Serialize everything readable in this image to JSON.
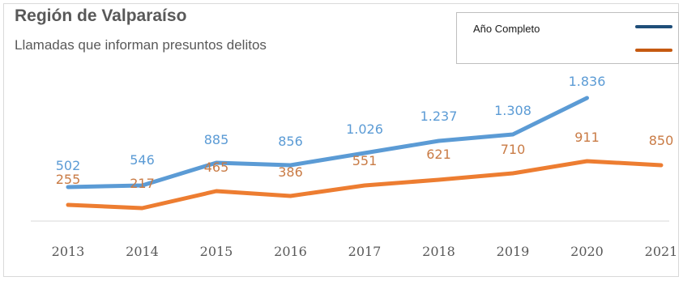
{
  "chart_data": {
    "type": "line",
    "title": "Región de Valparaíso",
    "subtitle": "Llamadas que informan presuntos delitos",
    "categories": [
      "2013",
      "2014",
      "2015",
      "2016",
      "2017",
      "2018",
      "2019",
      "2020",
      "2021"
    ],
    "series": [
      {
        "name": "Año Completo",
        "color": "#5b9bd5",
        "values": [
          502,
          546,
          885,
          856,
          1026,
          1237,
          1308,
          1836,
          null
        ],
        "labels": [
          "502",
          "546",
          "885",
          "856",
          "1.026",
          "1.237",
          "1.308",
          "1.836",
          ""
        ]
      },
      {
        "name": "",
        "color": "#ed7d31",
        "values": [
          255,
          217,
          465,
          386,
          551,
          621,
          710,
          911,
          850
        ],
        "labels": [
          "255",
          "217",
          "465",
          "386",
          "551",
          "621",
          "710",
          "911",
          "850"
        ]
      }
    ],
    "legend_position": "top-right",
    "legend_colors": [
      "#1f4e79",
      "#c55a11"
    ],
    "grid": false
  }
}
